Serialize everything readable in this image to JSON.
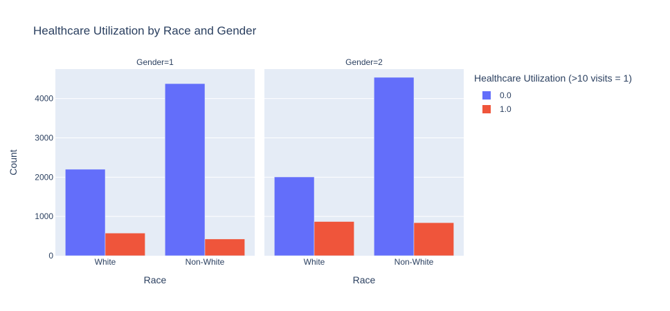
{
  "chart_data": {
    "type": "bar",
    "title": "Healthcare Utilization by Race and Gender",
    "xlabel": "Race",
    "ylabel": "Count",
    "ylim": [
      0,
      4750
    ],
    "yticks": [
      0,
      1000,
      2000,
      3000,
      4000
    ],
    "grid": true,
    "legend": {
      "title": "Healthcare Utilization (>10 visits = 1)",
      "placement": "right"
    },
    "categories": [
      "White",
      "Non-White"
    ],
    "series_colors": [
      "#636efa",
      "#ef553b"
    ],
    "facets": [
      {
        "label": "Gender=1",
        "series": [
          {
            "name": "0.0",
            "values": [
              2200,
              4380
            ]
          },
          {
            "name": "1.0",
            "values": [
              575,
              425
            ]
          }
        ]
      },
      {
        "label": "Gender=2",
        "series": [
          {
            "name": "0.0",
            "values": [
              2005,
              4540
            ]
          },
          {
            "name": "1.0",
            "values": [
              870,
              840
            ]
          }
        ]
      }
    ]
  }
}
